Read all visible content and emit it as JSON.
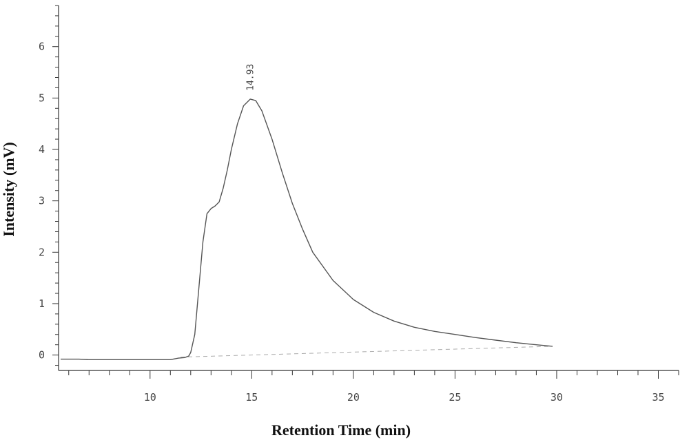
{
  "chart_data": {
    "type": "line",
    "title": "",
    "xlabel": "Retention Time (min)",
    "ylabel": "Intensity (mV)",
    "xlim": [
      5.5,
      36
    ],
    "ylim": [
      -0.3,
      6.8
    ],
    "x_ticks": [
      "10",
      "15",
      "20",
      "25",
      "30",
      "35"
    ],
    "y_ticks": [
      "0",
      "1",
      "2",
      "3",
      "4",
      "5",
      "6"
    ],
    "peak_annotation": {
      "label": "14.93",
      "x": 14.93,
      "y": 4.98
    },
    "series": [
      {
        "x": [
          5.6,
          6.5,
          7.0,
          8,
          9,
          10,
          11,
          11.4,
          11.7,
          11.9,
          12.0,
          12.2,
          12.4,
          12.6,
          12.8,
          13.0,
          13.2,
          13.4,
          13.6,
          13.8,
          14.0,
          14.3,
          14.6,
          14.93,
          15.2,
          15.5,
          16.0,
          16.5,
          17.0,
          17.5,
          18,
          19,
          20,
          21,
          22,
          23,
          24,
          25,
          26,
          27,
          28,
          29,
          29.8
        ],
        "y": [
          -0.08,
          -0.08,
          -0.09,
          -0.09,
          -0.09,
          -0.09,
          -0.09,
          -0.06,
          -0.05,
          -0.02,
          0.05,
          0.4,
          1.3,
          2.2,
          2.75,
          2.85,
          2.9,
          2.98,
          3.25,
          3.6,
          4.0,
          4.5,
          4.85,
          4.98,
          4.95,
          4.75,
          4.2,
          3.55,
          2.95,
          2.45,
          2.0,
          1.45,
          1.08,
          0.83,
          0.66,
          0.54,
          0.46,
          0.4,
          0.34,
          0.29,
          0.24,
          0.2,
          0.17
        ]
      }
    ],
    "baseline": {
      "x": [
        11.5,
        29.8
      ],
      "y": [
        -0.04,
        0.17
      ]
    },
    "colors": {
      "trace": "#555555",
      "axis": "#333333",
      "baseline": "#aaaaaa"
    }
  }
}
